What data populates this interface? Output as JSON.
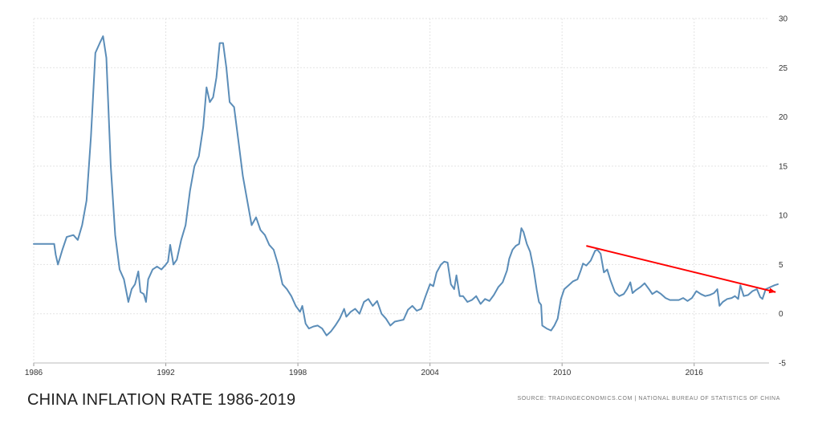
{
  "chart_data": {
    "type": "line",
    "title": "CHINA INFLATION RATE 1986-2019",
    "source": "SOURCE: TRADINGECONOMICS.COM | NATIONAL BUREAU OF STATISTICS OF CHINA",
    "xlim": [
      1986,
      2019.4
    ],
    "ylim": [
      -5,
      30
    ],
    "x_ticks": [
      1986,
      1992,
      1998,
      2004,
      2010,
      2016
    ],
    "y_ticks": [
      -5,
      0,
      5,
      10,
      15,
      20,
      25,
      30
    ],
    "grid": true,
    "legend": "none",
    "series": [
      {
        "color": "#5b8db8",
        "points": [
          [
            1986.0,
            7.1
          ],
          [
            1986.5,
            7.1
          ],
          [
            1986.93,
            7.1
          ],
          [
            1987.0,
            6.0
          ],
          [
            1987.1,
            5.0
          ],
          [
            1987.3,
            6.5
          ],
          [
            1987.5,
            7.8
          ],
          [
            1987.8,
            8.0
          ],
          [
            1988.0,
            7.5
          ],
          [
            1988.2,
            9.0
          ],
          [
            1988.4,
            11.5
          ],
          [
            1988.6,
            18.0
          ],
          [
            1988.8,
            26.5
          ],
          [
            1989.0,
            27.5
          ],
          [
            1989.15,
            28.2
          ],
          [
            1989.3,
            26.0
          ],
          [
            1989.5,
            15.0
          ],
          [
            1989.7,
            8.0
          ],
          [
            1989.9,
            4.5
          ],
          [
            1990.1,
            3.5
          ],
          [
            1990.3,
            1.2
          ],
          [
            1990.45,
            2.5
          ],
          [
            1990.6,
            3.0
          ],
          [
            1990.75,
            4.3
          ],
          [
            1990.85,
            2.2
          ],
          [
            1991.0,
            2.0
          ],
          [
            1991.1,
            1.2
          ],
          [
            1991.2,
            3.5
          ],
          [
            1991.4,
            4.5
          ],
          [
            1991.6,
            4.8
          ],
          [
            1991.8,
            4.5
          ],
          [
            1992.0,
            5.0
          ],
          [
            1992.1,
            5.3
          ],
          [
            1992.2,
            7.0
          ],
          [
            1992.35,
            5.0
          ],
          [
            1992.5,
            5.5
          ],
          [
            1992.7,
            7.5
          ],
          [
            1992.9,
            9.0
          ],
          [
            1993.1,
            12.5
          ],
          [
            1993.3,
            15.0
          ],
          [
            1993.5,
            16.0
          ],
          [
            1993.7,
            19.0
          ],
          [
            1993.85,
            23.0
          ],
          [
            1994.0,
            21.5
          ],
          [
            1994.15,
            22.0
          ],
          [
            1994.3,
            24.0
          ],
          [
            1994.45,
            27.5
          ],
          [
            1994.6,
            27.5
          ],
          [
            1994.75,
            25.0
          ],
          [
            1994.9,
            21.5
          ],
          [
            1995.1,
            21.0
          ],
          [
            1995.3,
            17.5
          ],
          [
            1995.5,
            14.0
          ],
          [
            1995.7,
            11.5
          ],
          [
            1995.9,
            9.0
          ],
          [
            1996.1,
            9.8
          ],
          [
            1996.3,
            8.5
          ],
          [
            1996.5,
            8.0
          ],
          [
            1996.7,
            7.0
          ],
          [
            1996.9,
            6.5
          ],
          [
            1997.1,
            5.0
          ],
          [
            1997.3,
            3.0
          ],
          [
            1997.5,
            2.5
          ],
          [
            1997.7,
            1.8
          ],
          [
            1997.9,
            0.8
          ],
          [
            1998.1,
            0.2
          ],
          [
            1998.2,
            0.8
          ],
          [
            1998.35,
            -1.0
          ],
          [
            1998.5,
            -1.5
          ],
          [
            1998.7,
            -1.3
          ],
          [
            1998.9,
            -1.2
          ],
          [
            1999.1,
            -1.5
          ],
          [
            1999.3,
            -2.2
          ],
          [
            1999.5,
            -1.8
          ],
          [
            1999.7,
            -1.2
          ],
          [
            1999.9,
            -0.5
          ],
          [
            2000.1,
            0.5
          ],
          [
            2000.2,
            -0.3
          ],
          [
            2000.4,
            0.2
          ],
          [
            2000.6,
            0.5
          ],
          [
            2000.8,
            0.0
          ],
          [
            2001.0,
            1.2
          ],
          [
            2001.2,
            1.5
          ],
          [
            2001.4,
            0.8
          ],
          [
            2001.6,
            1.3
          ],
          [
            2001.8,
            0.0
          ],
          [
            2002.0,
            -0.5
          ],
          [
            2002.2,
            -1.2
          ],
          [
            2002.4,
            -0.8
          ],
          [
            2002.6,
            -0.7
          ],
          [
            2002.8,
            -0.6
          ],
          [
            2003.0,
            0.4
          ],
          [
            2003.2,
            0.8
          ],
          [
            2003.4,
            0.3
          ],
          [
            2003.6,
            0.5
          ],
          [
            2003.8,
            1.8
          ],
          [
            2004.0,
            3.0
          ],
          [
            2004.15,
            2.8
          ],
          [
            2004.3,
            4.2
          ],
          [
            2004.5,
            5.0
          ],
          [
            2004.65,
            5.3
          ],
          [
            2004.8,
            5.2
          ],
          [
            2004.95,
            3.0
          ],
          [
            2005.1,
            2.5
          ],
          [
            2005.2,
            3.9
          ],
          [
            2005.35,
            1.8
          ],
          [
            2005.5,
            1.8
          ],
          [
            2005.7,
            1.2
          ],
          [
            2005.9,
            1.4
          ],
          [
            2006.1,
            1.8
          ],
          [
            2006.3,
            1.0
          ],
          [
            2006.5,
            1.5
          ],
          [
            2006.7,
            1.3
          ],
          [
            2006.9,
            1.9
          ],
          [
            2007.1,
            2.7
          ],
          [
            2007.3,
            3.2
          ],
          [
            2007.5,
            4.4
          ],
          [
            2007.6,
            5.6
          ],
          [
            2007.75,
            6.5
          ],
          [
            2007.9,
            6.9
          ],
          [
            2008.05,
            7.1
          ],
          [
            2008.15,
            8.7
          ],
          [
            2008.25,
            8.3
          ],
          [
            2008.4,
            7.1
          ],
          [
            2008.55,
            6.3
          ],
          [
            2008.7,
            4.6
          ],
          [
            2008.85,
            2.4
          ],
          [
            2008.95,
            1.2
          ],
          [
            2009.05,
            0.9
          ],
          [
            2009.1,
            -1.2
          ],
          [
            2009.3,
            -1.5
          ],
          [
            2009.5,
            -1.7
          ],
          [
            2009.65,
            -1.2
          ],
          [
            2009.8,
            -0.5
          ],
          [
            2009.95,
            1.5
          ],
          [
            2010.1,
            2.5
          ],
          [
            2010.3,
            2.9
          ],
          [
            2010.5,
            3.3
          ],
          [
            2010.7,
            3.5
          ],
          [
            2010.85,
            4.4
          ],
          [
            2010.95,
            5.1
          ],
          [
            2011.1,
            4.9
          ],
          [
            2011.3,
            5.4
          ],
          [
            2011.5,
            6.4
          ],
          [
            2011.6,
            6.5
          ],
          [
            2011.75,
            6.1
          ],
          [
            2011.9,
            4.2
          ],
          [
            2012.05,
            4.5
          ],
          [
            2012.2,
            3.4
          ],
          [
            2012.4,
            2.2
          ],
          [
            2012.6,
            1.8
          ],
          [
            2012.8,
            2.0
          ],
          [
            2012.95,
            2.5
          ],
          [
            2013.1,
            3.2
          ],
          [
            2013.2,
            2.1
          ],
          [
            2013.35,
            2.4
          ],
          [
            2013.55,
            2.7
          ],
          [
            2013.75,
            3.1
          ],
          [
            2013.95,
            2.5
          ],
          [
            2014.1,
            2.0
          ],
          [
            2014.3,
            2.3
          ],
          [
            2014.5,
            2.0
          ],
          [
            2014.7,
            1.6
          ],
          [
            2014.9,
            1.4
          ],
          [
            2015.1,
            1.4
          ],
          [
            2015.3,
            1.4
          ],
          [
            2015.5,
            1.6
          ],
          [
            2015.7,
            1.3
          ],
          [
            2015.9,
            1.6
          ],
          [
            2016.1,
            2.3
          ],
          [
            2016.3,
            2.0
          ],
          [
            2016.5,
            1.8
          ],
          [
            2016.7,
            1.9
          ],
          [
            2016.9,
            2.1
          ],
          [
            2017.05,
            2.5
          ],
          [
            2017.15,
            0.8
          ],
          [
            2017.3,
            1.2
          ],
          [
            2017.5,
            1.5
          ],
          [
            2017.7,
            1.6
          ],
          [
            2017.85,
            1.8
          ],
          [
            2018.0,
            1.5
          ],
          [
            2018.1,
            2.9
          ],
          [
            2018.25,
            1.8
          ],
          [
            2018.45,
            1.9
          ],
          [
            2018.65,
            2.3
          ],
          [
            2018.85,
            2.5
          ],
          [
            2019.0,
            1.7
          ],
          [
            2019.1,
            1.5
          ],
          [
            2019.25,
            2.5
          ],
          [
            2019.45,
            2.7
          ],
          [
            2019.65,
            2.9
          ],
          [
            2019.8,
            3.0
          ]
        ]
      }
    ],
    "trendline": {
      "color": "#ff0000",
      "points": [
        [
          2011.1,
          6.9
        ],
        [
          2019.7,
          2.2
        ]
      ]
    }
  }
}
